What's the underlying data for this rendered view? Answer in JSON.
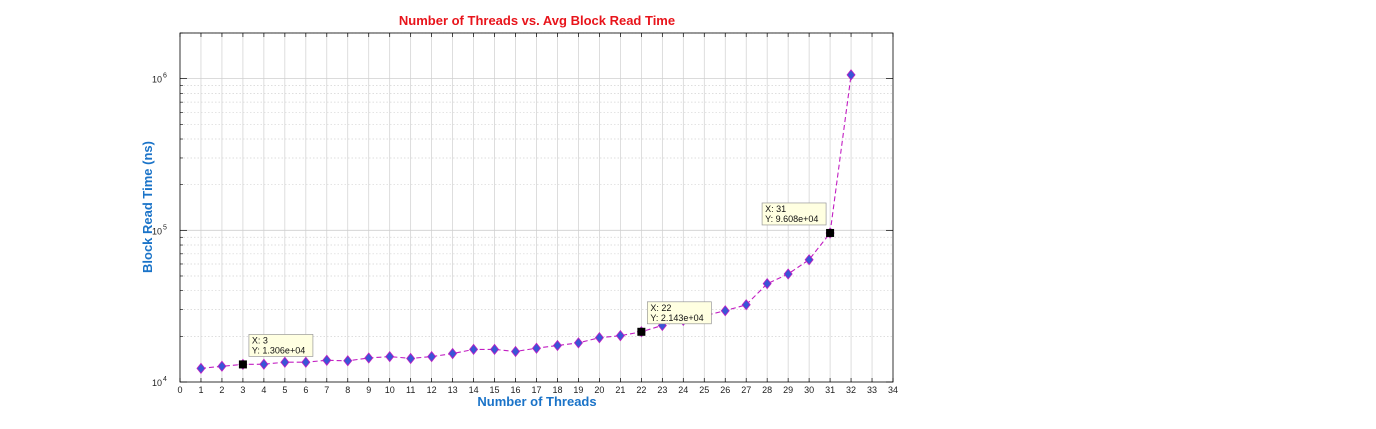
{
  "chart_data": {
    "type": "line",
    "title": "Number of Threads vs. Avg Block Read Time",
    "xlabel": "Number of Threads",
    "ylabel": "Block Read Time (ns)",
    "xlim": [
      0,
      34
    ],
    "ylim": [
      10000,
      2000000
    ],
    "yscale": "log",
    "grid": true,
    "x": [
      1,
      2,
      3,
      4,
      5,
      6,
      7,
      8,
      9,
      10,
      11,
      12,
      13,
      14,
      15,
      16,
      17,
      18,
      19,
      20,
      21,
      22,
      23,
      24,
      25,
      26,
      27,
      28,
      29,
      30,
      31,
      32
    ],
    "series": [
      {
        "values": [
          12300,
          12700,
          13060,
          13100,
          13500,
          13500,
          13900,
          13800,
          14400,
          14700,
          14300,
          14700,
          15400,
          16400,
          16400,
          15900,
          16700,
          17400,
          18100,
          19600,
          20200,
          21430,
          23600,
          25500,
          27300,
          29500,
          32300,
          44500,
          51500,
          64000,
          96080,
          1060000
        ]
      }
    ],
    "xticks": [
      "0",
      "1",
      "2",
      "3",
      "4",
      "5",
      "6",
      "7",
      "8",
      "9",
      "10",
      "11",
      "12",
      "13",
      "14",
      "15",
      "16",
      "17",
      "18",
      "19",
      "20",
      "21",
      "22",
      "23",
      "24",
      "25",
      "26",
      "27",
      "28",
      "29",
      "30",
      "31",
      "32",
      "33",
      "34"
    ],
    "yticks": [
      {
        "value": 10000,
        "base": "10",
        "exp": "4"
      },
      {
        "value": 100000,
        "base": "10",
        "exp": "5"
      },
      {
        "value": 1000000,
        "base": "10",
        "exp": "6"
      }
    ],
    "datatips": [
      {
        "x": 3,
        "y": 13060,
        "line1": "X: 3",
        "line2": "Y: 1.306e+04"
      },
      {
        "x": 22,
        "y": 21430,
        "line1": "X: 22",
        "line2": "Y: 2.143e+04"
      },
      {
        "x": 31,
        "y": 96080,
        "line1": "X: 31",
        "line2": "Y: 9.608e+04"
      }
    ],
    "colors": {
      "line": "#c21ec2",
      "marker": "#3a55d6",
      "title": "#e8141b",
      "axis_label": "#1a73c8",
      "tip_bg": "#ffffe1"
    }
  }
}
